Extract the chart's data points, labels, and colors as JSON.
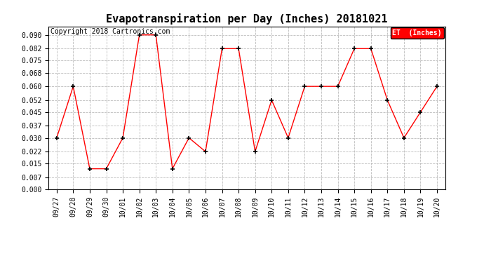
{
  "title": "Evapotranspiration per Day (Inches) 20181021",
  "copyright_text": "Copyright 2018 Cartronics.com",
  "legend_label": "ET  (Inches)",
  "x_labels": [
    "09/27",
    "09/28",
    "09/29",
    "09/30",
    "10/01",
    "10/02",
    "10/03",
    "10/04",
    "10/05",
    "10/06",
    "10/07",
    "10/08",
    "10/09",
    "10/10",
    "10/11",
    "10/12",
    "10/13",
    "10/14",
    "10/15",
    "10/16",
    "10/17",
    "10/18",
    "10/19",
    "10/20"
  ],
  "y_values": [
    0.03,
    0.06,
    0.012,
    0.012,
    0.03,
    0.09,
    0.09,
    0.012,
    0.03,
    0.022,
    0.082,
    0.082,
    0.022,
    0.052,
    0.03,
    0.06,
    0.06,
    0.06,
    0.082,
    0.082,
    0.052,
    0.03,
    0.045,
    0.06
  ],
  "line_color": "#FF0000",
  "marker_color": "#000000",
  "background_color": "#FFFFFF",
  "grid_color": "#BBBBBB",
  "ylim": [
    0.0,
    0.095
  ],
  "yticks": [
    0.0,
    0.007,
    0.015,
    0.022,
    0.03,
    0.037,
    0.045,
    0.052,
    0.06,
    0.068,
    0.075,
    0.082,
    0.09
  ],
  "legend_bg": "#FF0000",
  "legend_text_color": "#FFFFFF",
  "title_fontsize": 11,
  "tick_fontsize": 7,
  "copyright_fontsize": 7,
  "legend_fontsize": 7
}
